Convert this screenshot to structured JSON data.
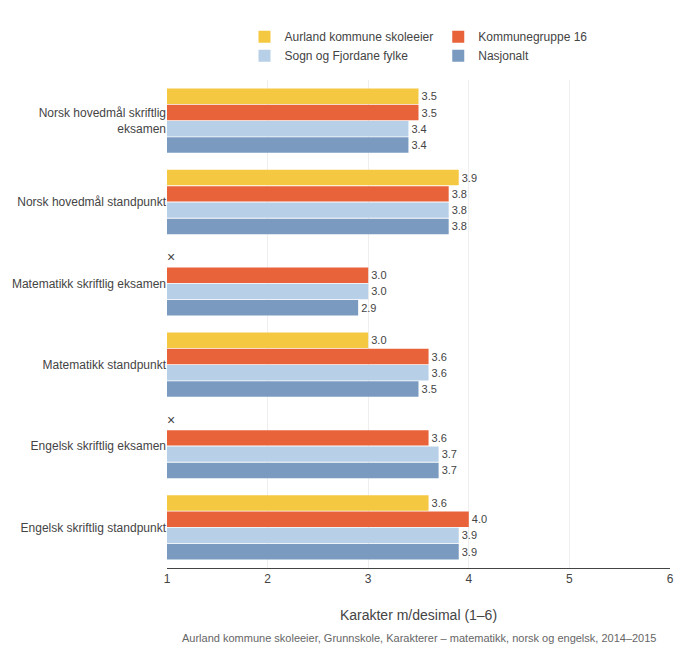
{
  "chart_data": {
    "type": "bar",
    "orientation": "horizontal",
    "categories": [
      "Norsk hovedmål skriftlig\neksamen",
      "Norsk hovedmål standpunkt",
      "Matematikk skriftlig eksamen",
      "Matematikk standpunkt",
      "Engelsk skriftlig eksamen",
      "Engelsk skriftlig standpunkt"
    ],
    "series": [
      {
        "name": "Aurland kommune skoleeier",
        "color": "#f5c842",
        "values": [
          3.5,
          3.9,
          null,
          3.0,
          null,
          3.6
        ],
        "value_labels": [
          "3.5",
          "3.9",
          "×",
          "3.0",
          "×",
          "3.6"
        ]
      },
      {
        "name": "Kommunegruppe 16",
        "color": "#e8623a",
        "values": [
          3.5,
          3.8,
          3.0,
          3.6,
          3.6,
          4.0
        ],
        "value_labels": [
          "3.5",
          "3.8",
          "3.0",
          "3.6",
          "3.6",
          "4.0"
        ]
      },
      {
        "name": "Sogn og Fjordane fylke",
        "color": "#b8cfe8",
        "values": [
          3.4,
          3.8,
          3.0,
          3.6,
          3.7,
          3.9
        ],
        "value_labels": [
          "3.4",
          "3.8",
          "3.0",
          "3.6",
          "3.7",
          "3.9"
        ]
      },
      {
        "name": "Nasjonalt",
        "color": "#7a9bbf",
        "values": [
          3.4,
          3.8,
          2.9,
          3.5,
          3.7,
          3.9
        ],
        "value_labels": [
          "3.4",
          "3.8",
          "2.9",
          "3.5",
          "3.7",
          "3.9"
        ]
      }
    ],
    "xlim": [
      1,
      6
    ],
    "xticks": [
      1,
      2,
      3,
      4,
      5,
      6
    ],
    "xlabel": "Karakter m/desimal (1–6)",
    "annotations": [
      "Aurland kommune skoleeier, Grunnskole, Karakterer – matematikk, norsk og engelsk, 2014–2015"
    ],
    "grid": true,
    "legend": "top",
    "data_labels": true
  }
}
